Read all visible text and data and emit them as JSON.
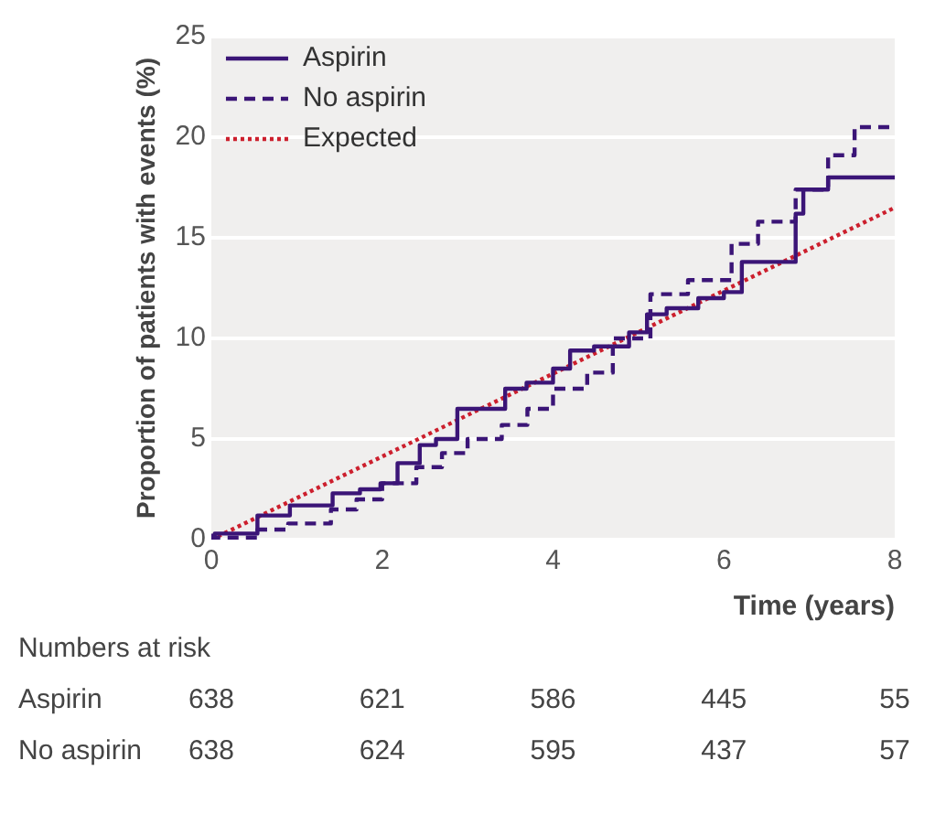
{
  "chart_data": {
    "type": "step",
    "xlabel": "Time (years)",
    "ylabel": "Proportion of patients with events (%)",
    "xlim": [
      0,
      8
    ],
    "xticks": [
      0,
      2,
      4,
      6,
      8
    ],
    "ylim": [
      0,
      25
    ],
    "yticks": [
      0,
      5,
      10,
      15,
      20,
      25
    ],
    "grid": "y",
    "legend": "top left",
    "series": [
      {
        "name": "Aspirin",
        "color": "#3b1577",
        "line_style": "solid",
        "x": [
          0,
          0.04,
          0.54,
          0.92,
          1.42,
          1.74,
          1.98,
          2.18,
          2.44,
          2.63,
          2.88,
          3.1,
          3.44,
          3.69,
          4.0,
          4.2,
          4.48,
          4.89,
          5.1,
          5.33,
          5.7,
          6.0,
          6.21,
          6.52,
          6.84,
          6.93,
          7.22,
          7.53,
          8.0
        ],
        "values": [
          0,
          0.2,
          0.3,
          1.2,
          1.7,
          2.3,
          2.5,
          2.8,
          3.8,
          4.7,
          5.0,
          6.5,
          6.5,
          7.5,
          7.8,
          8.5,
          9.4,
          9.6,
          10.3,
          11.2,
          11.5,
          12.0,
          12.3,
          13.8,
          13.8,
          16.2,
          17.4,
          18.0,
          18.0
        ]
      },
      {
        "name": "No aspirin",
        "color": "#3b1577",
        "line_style": "dashed",
        "x": [
          0,
          0.54,
          0.9,
          1.4,
          1.7,
          2.0,
          2.4,
          2.7,
          3.0,
          3.4,
          3.7,
          4.0,
          4.4,
          4.7,
          5.14,
          5.58,
          6.09,
          6.4,
          6.84,
          7.22,
          7.53,
          7.79,
          8.0
        ],
        "values": [
          0,
          0.1,
          0.5,
          0.8,
          1.5,
          2.0,
          2.8,
          3.6,
          4.3,
          5.0,
          5.7,
          6.5,
          7.5,
          8.3,
          10.0,
          12.2,
          12.9,
          14.7,
          15.8,
          17.4,
          19.1,
          20.5,
          20.5
        ]
      },
      {
        "name": "Expected",
        "type": "line",
        "color": "#cc1f2d",
        "line_style": "dotted",
        "x": [
          0,
          8
        ],
        "values": [
          0,
          16.5
        ]
      }
    ],
    "annotations": [
      "Numbers at risk",
      "Aspirin",
      "638",
      "621",
      "586",
      "445",
      "55",
      "No aspirin",
      "638",
      "624",
      "595",
      "437",
      "57"
    ]
  }
}
